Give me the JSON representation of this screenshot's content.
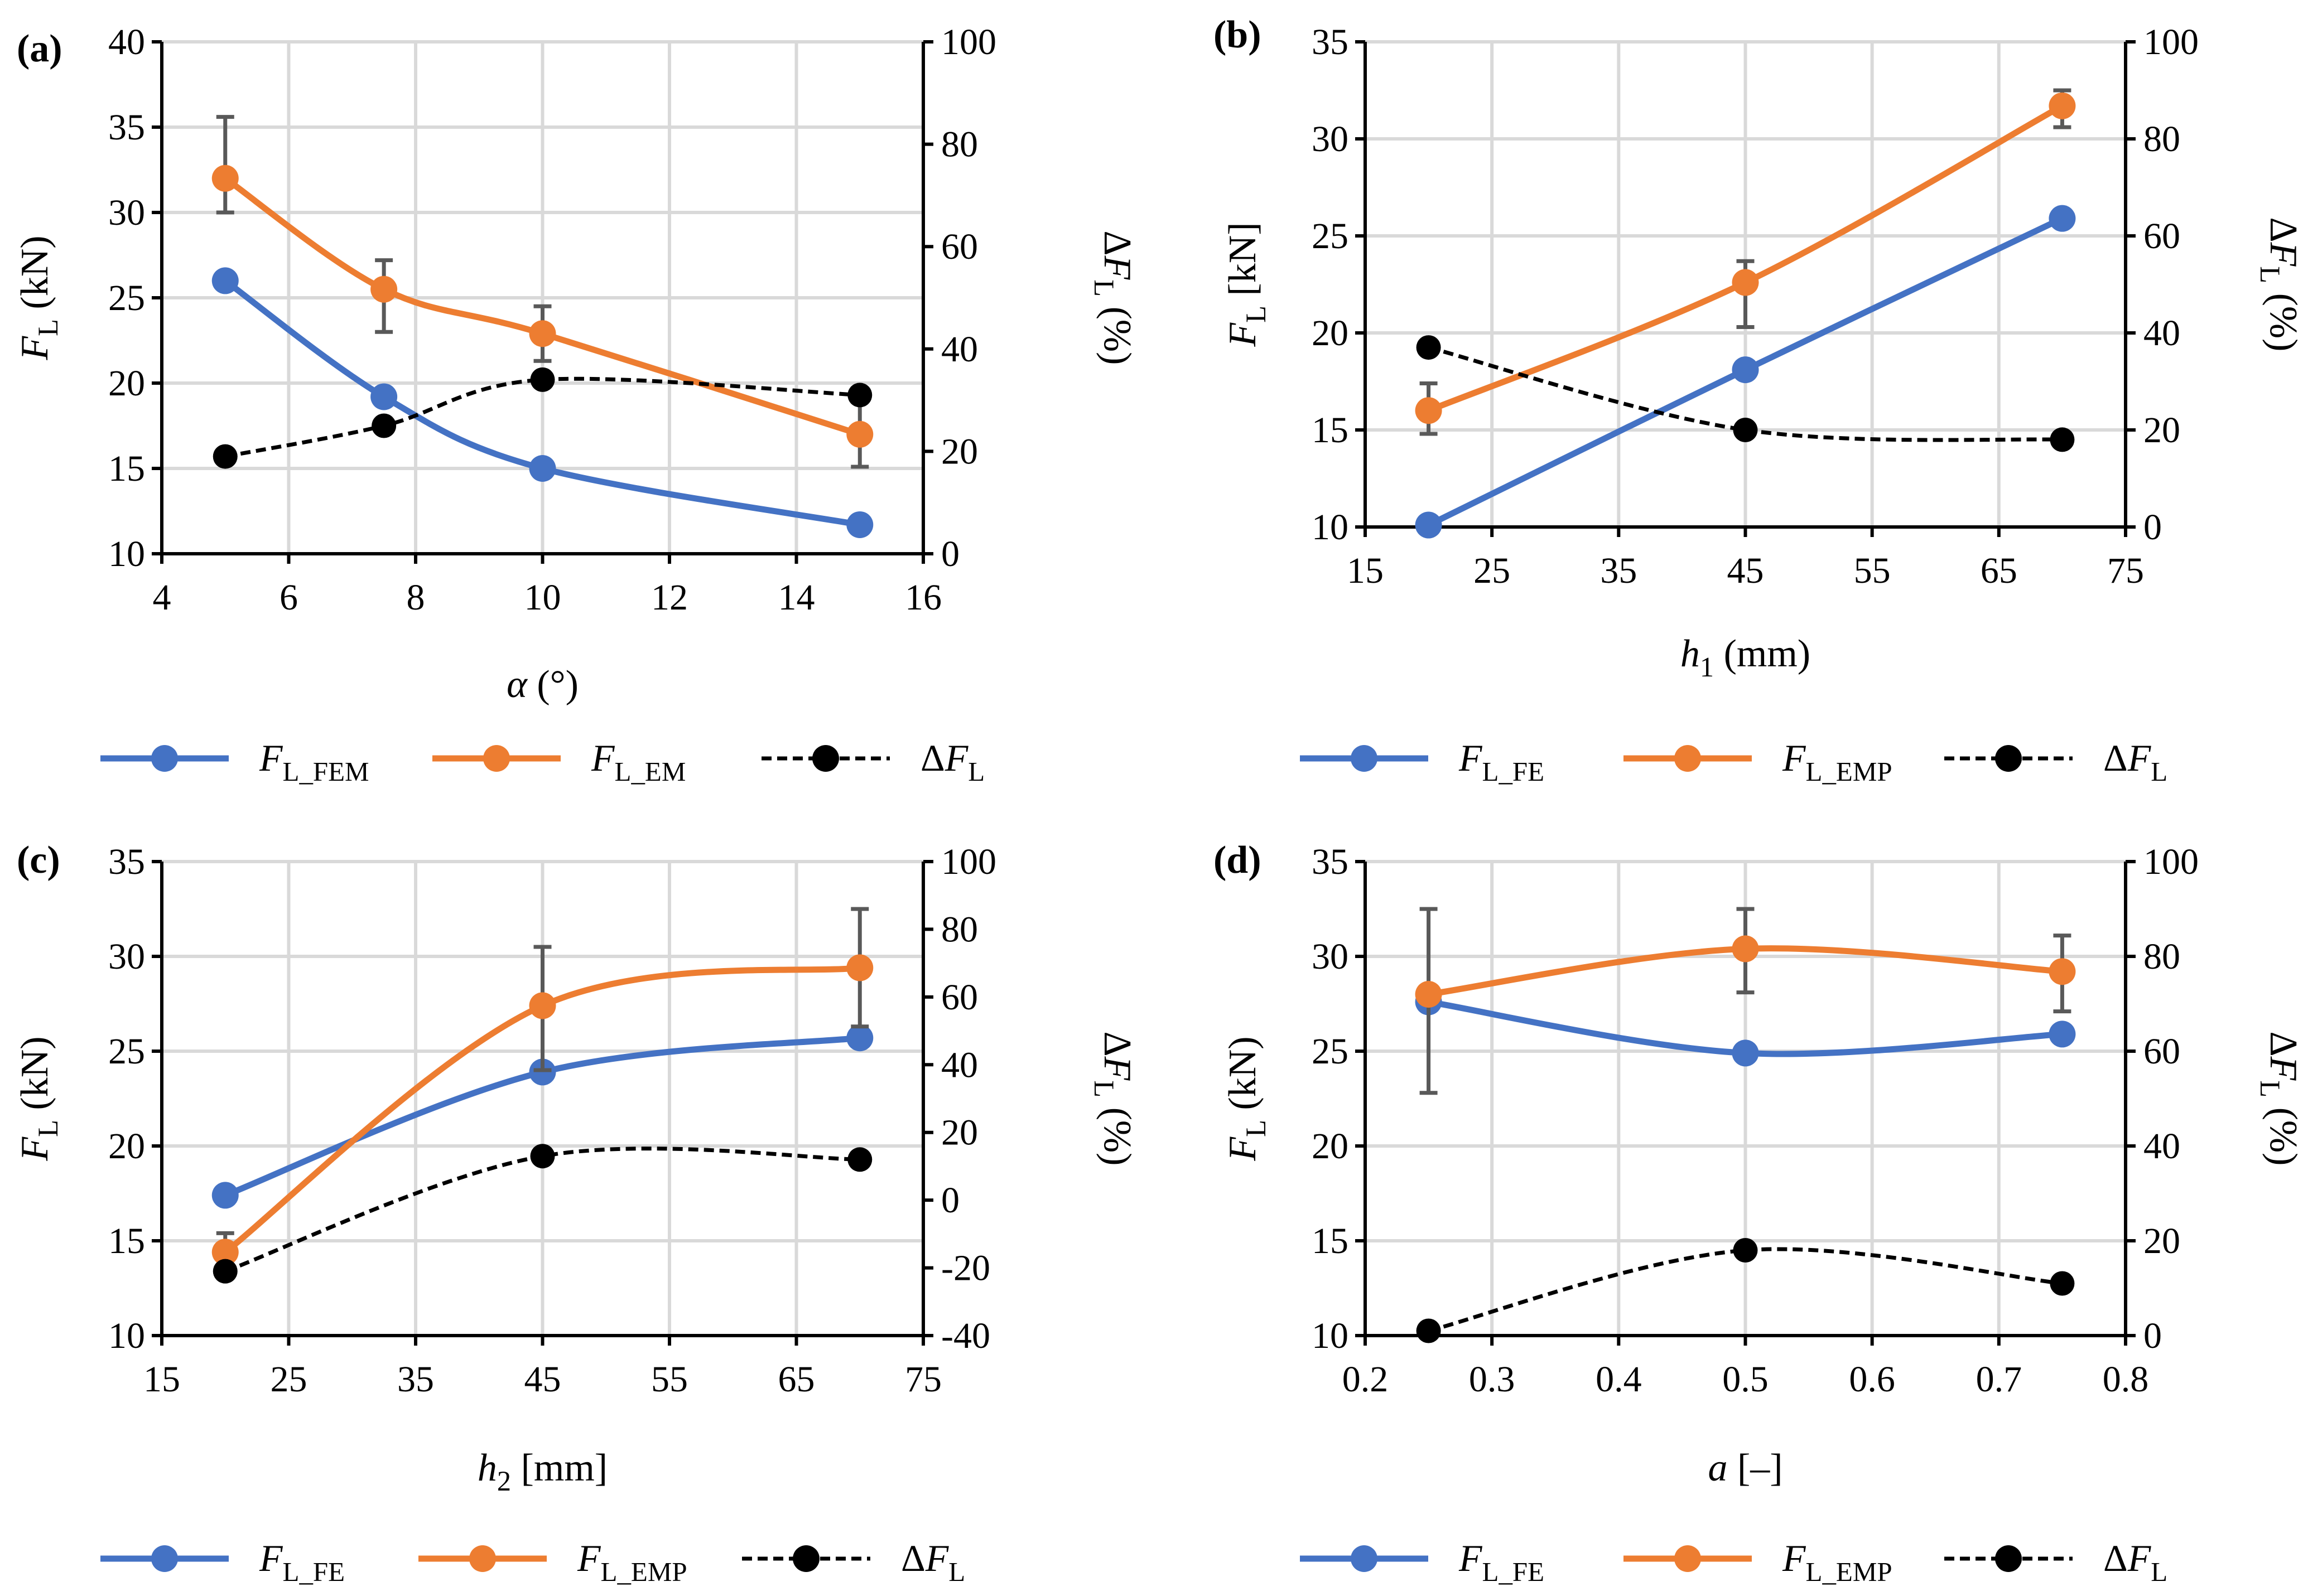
{
  "colors": {
    "fe": "#4472C4",
    "emp": "#ED7D31",
    "diff": "#000000",
    "error_bar": "#595959",
    "grid": "#d9d9d9"
  },
  "chart_data": [
    {
      "type": "line",
      "panel": "(a)",
      "xlabel": {
        "sym": "α",
        "unit": " (°)"
      },
      "ylabel": {
        "main": "F",
        "sub": "L",
        "unit": " (kN)"
      },
      "y2label": {
        "main": "ΔF",
        "sub": "L",
        "unit": " (%)"
      },
      "xlim": [
        4,
        16
      ],
      "xticks": [
        4,
        6,
        8,
        10,
        12,
        14,
        16
      ],
      "ylim": [
        10,
        40
      ],
      "yticks": [
        10,
        15,
        20,
        25,
        30,
        35,
        40
      ],
      "y2lim": [
        0,
        100
      ],
      "y2ticks": [
        0,
        20,
        40,
        60,
        80,
        100
      ],
      "x": [
        5,
        7.5,
        10,
        15
      ],
      "series": [
        {
          "name": "F_L_FEM",
          "legend_main": "F",
          "legend_sub": "L_FEM",
          "axis": "left",
          "style": "fe",
          "values": [
            26.0,
            19.2,
            15.0,
            11.7
          ]
        },
        {
          "name": "F_L_EM",
          "legend_main": "F",
          "legend_sub": "L_EM",
          "axis": "left",
          "style": "emp",
          "values": [
            32.0,
            25.5,
            22.9,
            17.0
          ],
          "errors": [
            [
              30.0,
              35.6
            ],
            [
              23.0,
              27.2
            ],
            [
              21.3,
              24.5
            ],
            [
              15.1,
              19.2
            ]
          ]
        },
        {
          "name": "ΔF_L",
          "legend_main": "ΔF",
          "legend_sub": "L",
          "axis": "right",
          "style": "diff",
          "values": [
            19,
            25,
            34,
            31
          ]
        }
      ]
    },
    {
      "type": "line",
      "panel": "(b)",
      "xlabel": {
        "sym": "h",
        "sub": "1",
        "unit": " (mm)"
      },
      "ylabel": {
        "main": "F",
        "sub": "L",
        "unit": " [kN]"
      },
      "y2label": {
        "main": "ΔF",
        "sub": "L",
        "unit": " (%)"
      },
      "xlim": [
        15,
        75
      ],
      "xticks": [
        15,
        25,
        35,
        45,
        55,
        65,
        75
      ],
      "ylim": [
        10,
        35
      ],
      "yticks": [
        10,
        15,
        20,
        25,
        30,
        35
      ],
      "y2lim": [
        0,
        100
      ],
      "y2ticks": [
        0,
        20,
        40,
        60,
        80,
        100
      ],
      "x": [
        20,
        45,
        70
      ],
      "series": [
        {
          "name": "F_L_FE",
          "legend_main": "F",
          "legend_sub": "L_FE",
          "axis": "left",
          "style": "fe",
          "values": [
            10.1,
            18.1,
            25.9
          ]
        },
        {
          "name": "F_L_EMP",
          "legend_main": "F",
          "legend_sub": "L_EMP",
          "axis": "left",
          "style": "emp",
          "values": [
            16.0,
            22.6,
            31.7
          ],
          "errors": [
            [
              14.8,
              17.4
            ],
            [
              20.3,
              23.7
            ],
            [
              30.6,
              32.5
            ]
          ]
        },
        {
          "name": "ΔF_L",
          "legend_main": "ΔF",
          "legend_sub": "L",
          "axis": "right",
          "style": "diff",
          "values": [
            37,
            20,
            18
          ]
        }
      ]
    },
    {
      "type": "line",
      "panel": "(c)",
      "xlabel": {
        "sym": "h",
        "sub": "2",
        "unit": " [mm]"
      },
      "ylabel": {
        "main": "F",
        "sub": "L",
        "unit": " (kN)"
      },
      "y2label": {
        "main": "ΔF",
        "sub": "L",
        "unit": " (%)"
      },
      "xlim": [
        15,
        75
      ],
      "xticks": [
        15,
        25,
        35,
        45,
        55,
        65,
        75
      ],
      "ylim": [
        10,
        35
      ],
      "yticks": [
        10,
        15,
        20,
        25,
        30,
        35
      ],
      "y2lim": [
        -40,
        100
      ],
      "y2ticks": [
        -40,
        -20,
        0,
        20,
        40,
        60,
        80,
        100
      ],
      "x": [
        20,
        45,
        70
      ],
      "series": [
        {
          "name": "F_L_FE",
          "legend_main": "F",
          "legend_sub": "L_FE",
          "axis": "left",
          "style": "fe",
          "values": [
            17.4,
            23.9,
            25.7
          ]
        },
        {
          "name": "F_L_EMP",
          "legend_main": "F",
          "legend_sub": "L_EMP",
          "axis": "left",
          "style": "emp",
          "values": [
            14.4,
            27.4,
            29.4
          ],
          "errors": [
            [
              13.6,
              15.4
            ],
            [
              24.0,
              30.5
            ],
            [
              26.3,
              32.5
            ]
          ]
        },
        {
          "name": "ΔF_L",
          "legend_main": "ΔF",
          "legend_sub": "L",
          "axis": "right",
          "style": "diff",
          "values": [
            -21,
            13,
            12
          ]
        }
      ]
    },
    {
      "type": "line",
      "panel": "(d)",
      "xlabel": {
        "sym": "a",
        "unit": " [–]"
      },
      "ylabel": {
        "main": "F",
        "sub": "L",
        "unit": " (kN)"
      },
      "y2label": {
        "main": "ΔF",
        "sub": "L",
        "unit": " (%)"
      },
      "xlim": [
        0.2,
        0.8
      ],
      "xticks": [
        0.2,
        0.3,
        0.4,
        0.5,
        0.6,
        0.7,
        0.8
      ],
      "ylim": [
        10,
        35
      ],
      "yticks": [
        10,
        15,
        20,
        25,
        30,
        35
      ],
      "y2lim": [
        0,
        100
      ],
      "y2ticks": [
        0,
        20,
        40,
        60,
        80,
        100
      ],
      "x": [
        0.25,
        0.5,
        0.75
      ],
      "series": [
        {
          "name": "F_L_FE",
          "legend_main": "F",
          "legend_sub": "L_FE",
          "axis": "left",
          "style": "fe",
          "values": [
            27.6,
            24.9,
            25.9
          ]
        },
        {
          "name": "F_L_EMP",
          "legend_main": "F",
          "legend_sub": "L_EMP",
          "axis": "left",
          "style": "emp",
          "values": [
            28.0,
            30.4,
            29.2
          ],
          "errors": [
            [
              22.8,
              32.5
            ],
            [
              28.1,
              32.5
            ],
            [
              27.1,
              31.1
            ]
          ]
        },
        {
          "name": "ΔF_L",
          "legend_main": "ΔF",
          "legend_sub": "L",
          "axis": "right",
          "style": "diff",
          "values": [
            1,
            18,
            11
          ]
        }
      ]
    }
  ]
}
